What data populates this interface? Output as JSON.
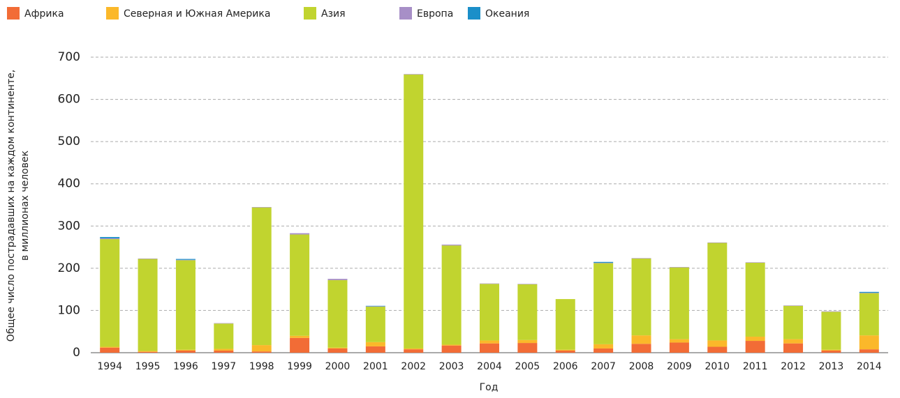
{
  "chart_data": {
    "type": "stacked_bar",
    "y_label": [
      "Общее число пострадавших на каждом континенте,",
      "в миллионах человек"
    ],
    "x_label": "Год",
    "categories": [
      "1994",
      "1995",
      "1996",
      "1997",
      "1998",
      "1999",
      "2000",
      "2001",
      "2002",
      "2003",
      "2004",
      "2005",
      "2006",
      "2007",
      "2008",
      "2009",
      "2010",
      "2011",
      "2012",
      "2013",
      "2014"
    ],
    "series": [
      {
        "name": "Африка",
        "color": "#f26c36",
        "values": [
          12,
          2,
          5,
          5,
          3,
          35,
          10,
          15,
          8,
          17,
          22,
          23,
          5,
          10,
          21,
          24,
          14,
          28,
          22,
          5,
          8
        ]
      },
      {
        "name": "Северная и Южная Америка",
        "color": "#fbb82a",
        "values": [
          2,
          2,
          2,
          4,
          15,
          5,
          2,
          10,
          2,
          2,
          7,
          7,
          2,
          10,
          20,
          8,
          15,
          10,
          10,
          2,
          33
        ]
      },
      {
        "name": "Азия",
        "color": "#c1d42f",
        "values": [
          255,
          218,
          212,
          60,
          326,
          240,
          160,
          84,
          649,
          235,
          134,
          132,
          120,
          192,
          182,
          170,
          231,
          175,
          79,
          90,
          100
        ]
      },
      {
        "name": "Европа",
        "color": "#a78fc7",
        "values": [
          2,
          1,
          1,
          1,
          1,
          3,
          3,
          1,
          1,
          2,
          1,
          1,
          0,
          1,
          1,
          1,
          1,
          1,
          1,
          1,
          1
        ]
      },
      {
        "name": "Океания",
        "color": "#1b8fc9",
        "values": [
          3,
          0,
          2,
          0,
          0,
          0,
          0,
          1,
          0,
          0,
          0,
          0,
          0,
          2,
          0,
          0,
          0,
          0,
          0,
          0,
          2
        ]
      }
    ],
    "ylim": [
      0,
      700
    ],
    "yticks": [
      0,
      100,
      200,
      300,
      400,
      500,
      600,
      700
    ],
    "grid": true
  }
}
